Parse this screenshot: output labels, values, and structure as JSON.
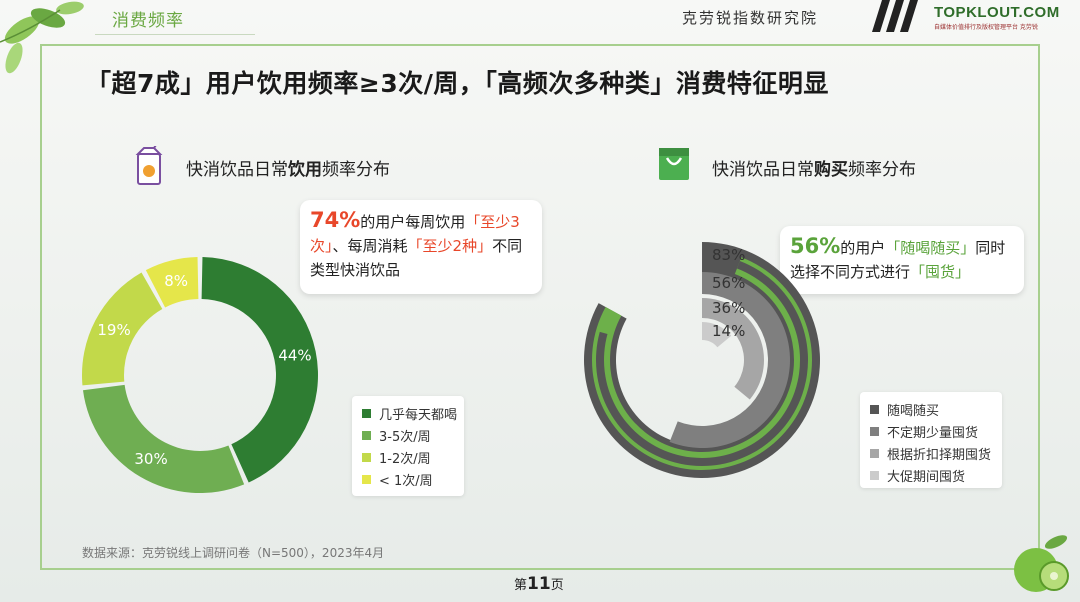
{
  "header": {
    "section_tab": "消费频率",
    "org_name": "克劳锐指数研究院",
    "brand_name": "TOPKLOUT.COM",
    "brand_sub": "自媒体价值排行及版权管理平台 克劳锐"
  },
  "headline": {
    "prefix": "「超7成」用户饮用频率≥3次/周，",
    "suffix": "「高频次多种类」消费特征明显"
  },
  "left_panel": {
    "title_pre": "快消饮品日常",
    "title_bold": "饮用",
    "title_post": "频率分布",
    "callout": {
      "pct": "74%",
      "t1": "的用户每周饮用",
      "h1": "「至少3次」",
      "t2": "、每周消耗",
      "h2": "「至少2种」",
      "t3": "不同类型快消饮品"
    }
  },
  "right_panel": {
    "title_pre": "快消饮品日常",
    "title_bold": "购买",
    "title_post": "频率分布",
    "callout": {
      "pct": "56%",
      "t1": "的用户",
      "h1": "「随喝随买」",
      "t2": "同时选择不同方式进行",
      "h2": "「囤货」"
    }
  },
  "chart_data": [
    {
      "type": "pie",
      "variant": "donut",
      "title": "快消饮品日常饮用频率分布",
      "categories": [
        "几乎每天都喝",
        "3-5次/周",
        "1-2次/周",
        "< 1次/周"
      ],
      "values": [
        44,
        30,
        19,
        8
      ],
      "value_labels": [
        "44%",
        "30%",
        "19%",
        "8%"
      ],
      "colors": [
        "#2e7d32",
        "#6fae52",
        "#c2d94a",
        "#e5e64a"
      ],
      "legend": "right-bottom"
    },
    {
      "type": "bar",
      "variant": "radial",
      "title": "快消饮品日常购买频率分布",
      "categories": [
        "随喝随买",
        "不定期少量囤货",
        "根据折扣择期囤货",
        "大促期间囤货"
      ],
      "values": [
        83,
        56,
        36,
        14
      ],
      "value_labels": [
        "83%",
        "56%",
        "36%",
        "14%"
      ],
      "max": 100,
      "colors": [
        "#555555",
        "#7f7f7f",
        "#a6a6a6",
        "#cbcbcb"
      ],
      "highlight_outline_color": "#6db04a",
      "legend": "right-bottom"
    }
  ],
  "footer": {
    "source": "数据来源：克劳锐线上调研问卷（N=500），2023年4月",
    "page_pre": "第",
    "page_num": "11",
    "page_post": "页"
  }
}
